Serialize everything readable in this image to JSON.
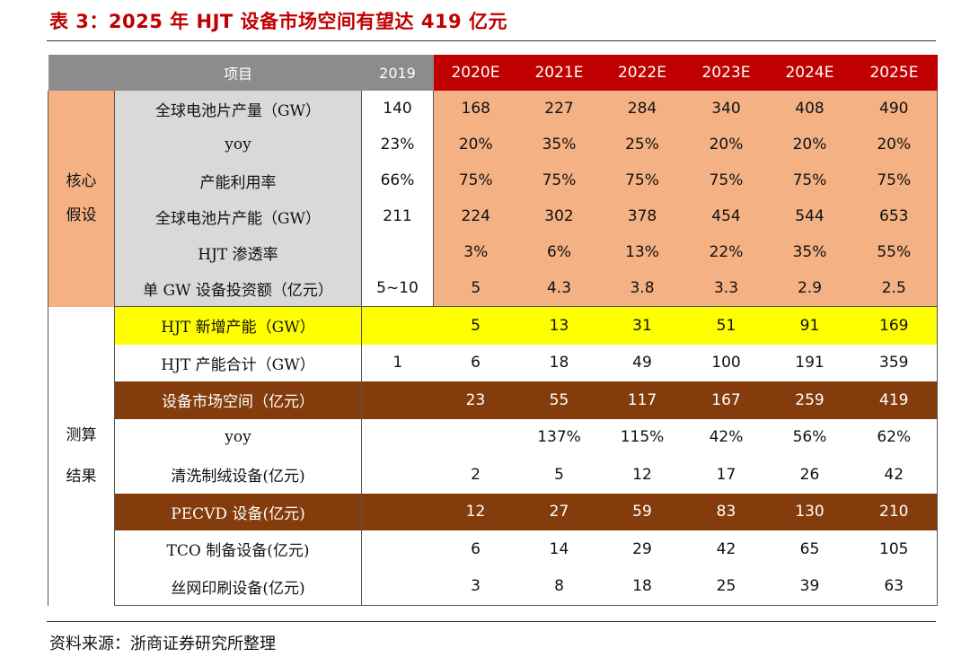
{
  "title": "表 3：2025 年 HJT 设备市场空间有望达 419 亿元",
  "header": {
    "item": "项目",
    "years": [
      "2019",
      "2020E",
      "2021E",
      "2022E",
      "2023E",
      "2024E",
      "2025E"
    ]
  },
  "sections": {
    "core": {
      "label_line1": "核心",
      "label_line2": "假设"
    },
    "calc": {
      "label_line1": "测算",
      "label_line2": "结果"
    }
  },
  "assumptions": [
    {
      "label": "全球电池片产量（GW）",
      "values": [
        "140",
        "168",
        "227",
        "284",
        "340",
        "408",
        "490"
      ]
    },
    {
      "label": "yoy",
      "values": [
        "23%",
        "20%",
        "35%",
        "25%",
        "20%",
        "20%",
        "20%"
      ]
    },
    {
      "label": "产能利用率",
      "values": [
        "66%",
        "75%",
        "75%",
        "75%",
        "75%",
        "75%",
        "75%"
      ]
    },
    {
      "label": "全球电池片产能（GW）",
      "values": [
        "211",
        "224",
        "302",
        "378",
        "454",
        "544",
        "653"
      ]
    },
    {
      "label": "HJT 渗透率",
      "values": [
        "",
        "3%",
        "6%",
        "13%",
        "22%",
        "35%",
        "55%"
      ]
    },
    {
      "label": "单 GW 设备投资额（亿元）",
      "values": [
        "5~10",
        "5",
        "4.3",
        "3.8",
        "3.3",
        "2.9",
        "2.5"
      ]
    }
  ],
  "results": [
    {
      "label": "HJT 新增产能（GW）",
      "values": [
        "",
        "5",
        "13",
        "31",
        "51",
        "91",
        "169"
      ]
    },
    {
      "label": "HJT 产能合计（GW）",
      "values": [
        "1",
        "6",
        "18",
        "49",
        "100",
        "191",
        "359"
      ]
    },
    {
      "label": "设备市场空间（亿元）",
      "values": [
        "",
        "23",
        "55",
        "117",
        "167",
        "259",
        "419"
      ]
    },
    {
      "label": "yoy",
      "values": [
        "",
        "",
        "137%",
        "115%",
        "42%",
        "56%",
        "62%"
      ]
    },
    {
      "label": "清洗制绒设备(亿元)",
      "values": [
        "",
        "2",
        "5",
        "12",
        "17",
        "26",
        "42"
      ]
    },
    {
      "label": "PECVD 设备(亿元)",
      "values": [
        "",
        "12",
        "27",
        "59",
        "83",
        "130",
        "210"
      ]
    },
    {
      "label": "TCO 制备设备(亿元)",
      "values": [
        "",
        "6",
        "14",
        "29",
        "42",
        "65",
        "105"
      ]
    },
    {
      "label": "丝网印刷设备(亿元)",
      "values": [
        "",
        "3",
        "8",
        "18",
        "25",
        "39",
        "63"
      ]
    }
  ],
  "source": "资料来源：浙商证券研究所整理",
  "colors": {
    "accent": "#c00000",
    "header_gray": "#8c8c8c",
    "orange": "#f4b183",
    "label_gray": "#d9d9d9",
    "yellow": "#ffff00",
    "brown": "#843c0c"
  }
}
